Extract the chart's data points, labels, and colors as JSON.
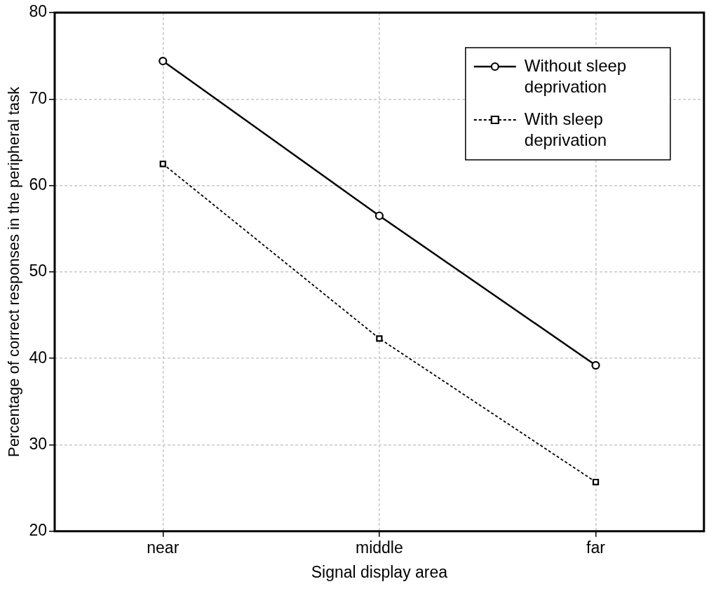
{
  "chart_data": {
    "type": "line",
    "xlabel": "Signal display area",
    "ylabel": "Percentage of correct responses in the peripheral task",
    "categories": [
      "near",
      "middle",
      "far"
    ],
    "series": [
      {
        "name": "Without sleep deprivation",
        "color": "#000000",
        "values": [
          74.4,
          56.5,
          39.2
        ],
        "marker": "circle",
        "line_style": "solid"
      },
      {
        "name": "With sleep deprivation",
        "color": "#000000",
        "values": [
          62.5,
          42.3,
          25.7
        ],
        "marker": "square",
        "line_style": "dashed"
      }
    ],
    "ylim": [
      20,
      80
    ],
    "yticks": [
      20,
      30,
      40,
      50,
      60,
      70,
      80
    ],
    "grid": true,
    "legend": "top right"
  }
}
